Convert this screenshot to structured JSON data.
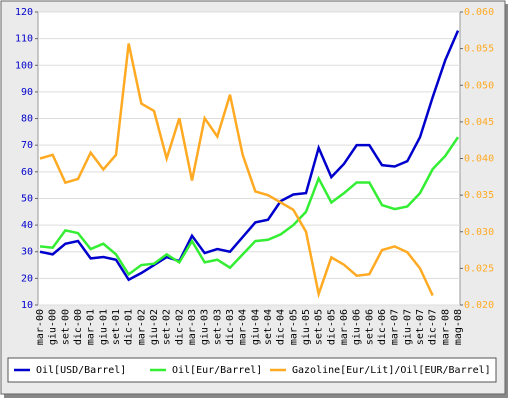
{
  "chart_data": {
    "type": "line",
    "categories": [
      "mar-00",
      "giu-00",
      "set-00",
      "dic-00",
      "mar-01",
      "giu-01",
      "set-01",
      "dic-01",
      "mar-02",
      "giu-02",
      "set-02",
      "dic-02",
      "mar-03",
      "giu-03",
      "set-03",
      "dic-03",
      "mar-04",
      "giu-04",
      "set-04",
      "dic-04",
      "mar-05",
      "giu-05",
      "set-05",
      "dic-05",
      "mar-06",
      "giu-06",
      "set-06",
      "dic-06",
      "mar-07",
      "giu-07",
      "set-07",
      "dic-07",
      "mar-08",
      "mag-08"
    ],
    "series": [
      {
        "name": "Oil[USD/Barrel]",
        "color": "#0000cc",
        "values": [
          30,
          29,
          33,
          34,
          27.5,
          28,
          27,
          19.5,
          22,
          25,
          28,
          26.5,
          36,
          29.5,
          31,
          30,
          35.5,
          41,
          42,
          49,
          51.5,
          52,
          69,
          58,
          63,
          70,
          70,
          62.5,
          62,
          64,
          73,
          88,
          102,
          113
        ]
      },
      {
        "name": "Oil[Eur/Barrel]",
        "color": "#33ee33",
        "values": [
          32,
          31.5,
          38,
          37,
          31,
          33,
          29,
          21.5,
          25,
          25.5,
          29,
          26,
          34,
          26,
          27,
          24,
          29,
          34,
          34.5,
          36.5,
          40,
          45,
          57.5,
          48.5,
          52,
          56,
          56,
          47.5,
          46,
          47,
          52,
          61,
          66,
          73
        ]
      },
      {
        "name": "Gazoline[Eur/Lit]/Oil[EUR/Barrel]",
        "color": "#ffaa22",
        "axis": "y2",
        "values": [
          0.04,
          0.0405,
          0.0367,
          0.0372,
          0.0408,
          0.0385,
          0.0405,
          0.0557,
          0.0475,
          0.0465,
          0.04,
          0.0455,
          0.037,
          0.0455,
          0.043,
          0.0487,
          0.0405,
          0.0355,
          0.035,
          0.034,
          0.033,
          0.03,
          0.0215,
          0.0265,
          0.0255,
          0.024,
          0.0242,
          0.0275,
          0.028,
          0.0272,
          0.025,
          0.0213,
          null,
          null
        ]
      }
    ],
    "ylim": [
      10,
      120
    ],
    "yticks": [
      10,
      20,
      30,
      40,
      50,
      60,
      70,
      80,
      90,
      100,
      110,
      120
    ],
    "y2lim": [
      0.02,
      0.06
    ],
    "y2ticks": [
      {
        "value": 0.02,
        "label": "0.020"
      },
      {
        "value": 0.025,
        "label": "0.025"
      },
      {
        "value": 0.03,
        "label": "0.030"
      },
      {
        "value": 0.035,
        "label": "0.035"
      },
      {
        "value": 0.04,
        "label": "0.040"
      },
      {
        "value": 0.045,
        "label": "0.045"
      },
      {
        "value": 0.05,
        "label": "0.050"
      },
      {
        "value": 0.055,
        "label": "0.055"
      },
      {
        "value": 0.06,
        "label": "0.060"
      }
    ],
    "grid": true
  }
}
